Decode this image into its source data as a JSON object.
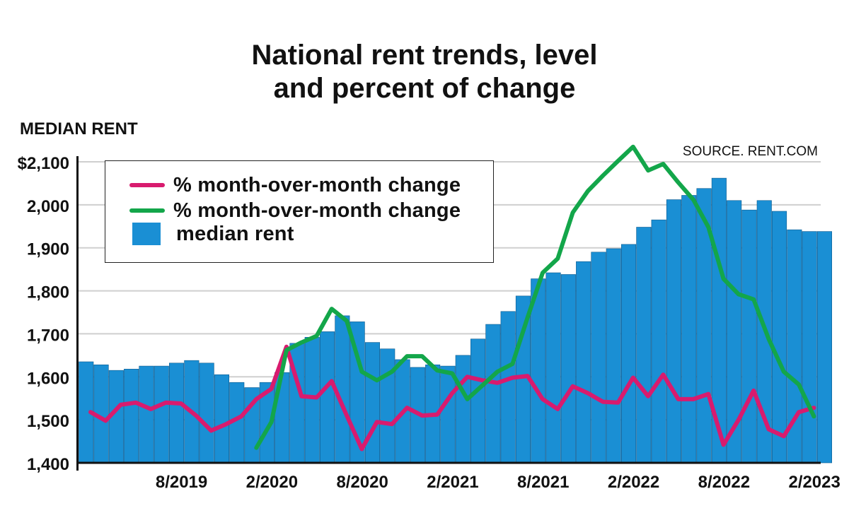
{
  "chart_data": {
    "type": "bar+line",
    "title": [
      "National rent trends, level",
      "and percent of change"
    ],
    "ylabel": "MEDIAN RENT",
    "source": "SOURCE. RENT.COM",
    "ylim": [
      1400,
      2100
    ],
    "y_ticks": [
      "$2,100",
      "2,000",
      "1,900",
      "1,800",
      "1,700",
      "1,600",
      "1,500",
      "1,400"
    ],
    "y_tick_values": [
      2100,
      2000,
      1900,
      1800,
      1700,
      1600,
      1500,
      1400
    ],
    "grid": true,
    "legend_position": "top-left",
    "x_start": "2/2019",
    "x_ticks": [
      {
        "index": 6,
        "label": "8/2019"
      },
      {
        "index": 12,
        "label": "2/2020"
      },
      {
        "index": 18,
        "label": "8/2020"
      },
      {
        "index": 24,
        "label": "2/2021"
      },
      {
        "index": 30,
        "label": "8/2021"
      },
      {
        "index": 36,
        "label": "2/2022"
      },
      {
        "index": 42,
        "label": "8/2022"
      },
      {
        "index": 48,
        "label": "2/2023"
      }
    ],
    "colors": {
      "pink": "#d81b6e",
      "green": "#13a64a",
      "bar": "#1a8fd4",
      "bar_edge": "#0d5a8e",
      "grid": "#cfcfcf"
    },
    "series": [
      {
        "name": "median rent",
        "kind": "bar",
        "color": "#1a8fd4",
        "values": [
          1635,
          1628,
          1615,
          1618,
          1625,
          1625,
          1632,
          1638,
          1632,
          1605,
          1587,
          1575,
          1587,
          1610,
          1678,
          1692,
          1705,
          1742,
          1728,
          1680,
          1665,
          1640,
          1622,
          1628,
          1625,
          1650,
          1688,
          1722,
          1752,
          1788,
          1828,
          1842,
          1838,
          1868,
          1890,
          1898,
          1908,
          1948,
          1965,
          2012,
          2022,
          2038,
          2062,
          2010,
          1988,
          2010,
          1985,
          1942,
          1938,
          1938
        ]
      },
      {
        "name": "% month-over-month change",
        "kind": "line",
        "color": "#d81b6e",
        "values": [
          1518,
          1498,
          1535,
          1540,
          1525,
          1540,
          1538,
          1510,
          1475,
          1490,
          1508,
          1548,
          1572,
          1670,
          1555,
          1552,
          1590,
          1510,
          1432,
          1495,
          1490,
          1528,
          1510,
          1512,
          1562,
          1600,
          1592,
          1586,
          1598,
          1602,
          1548,
          1525,
          1578,
          1562,
          1542,
          1540,
          1598,
          1555,
          1605,
          1548,
          1548,
          1560,
          1442,
          1500,
          1568,
          1478,
          1462,
          1518,
          1528
        ]
      },
      {
        "name": "% month-over-month change",
        "kind": "line",
        "color": "#13a64a",
        "values": [
          null,
          null,
          null,
          null,
          null,
          null,
          null,
          null,
          null,
          null,
          null,
          1435,
          1495,
          1662,
          1680,
          1695,
          1758,
          1730,
          1612,
          1592,
          1612,
          1648,
          1648,
          1615,
          1608,
          1548,
          1580,
          1612,
          1630,
          1738,
          1842,
          1875,
          1982,
          2032,
          2068,
          2102,
          2135,
          2080,
          2095,
          2052,
          2012,
          1948,
          1828,
          1792,
          1780,
          1688,
          1612,
          1582,
          1508
        ]
      }
    ]
  }
}
